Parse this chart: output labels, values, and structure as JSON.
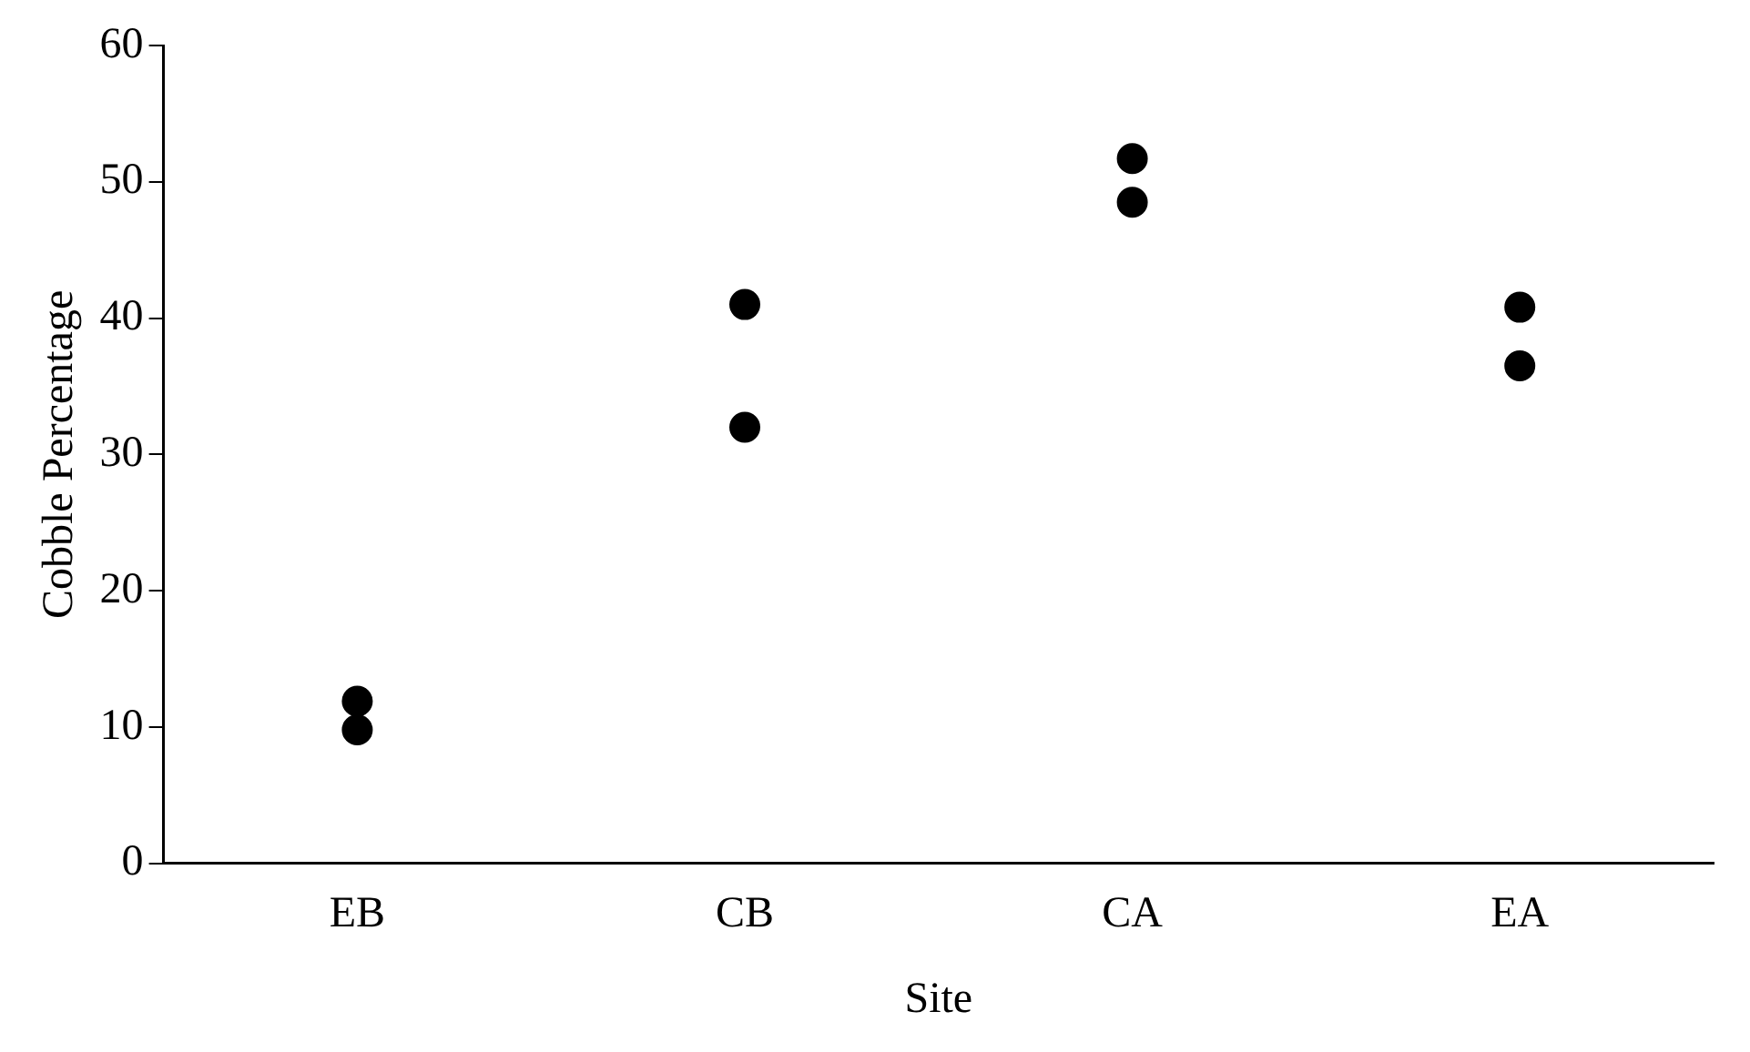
{
  "chart_data": {
    "type": "scatter",
    "xlabel": "Site",
    "ylabel": "Cobble Percentage",
    "categories": [
      "EB",
      "CB",
      "CA",
      "EA"
    ],
    "series": [
      {
        "color": "#000000",
        "x": [
          "EB",
          "EB",
          "CB",
          "CB",
          "CA",
          "CA",
          "EA",
          "EA"
        ],
        "values": [
          11.9,
          9.8,
          41,
          32,
          51.7,
          48.5,
          40.8,
          36.5
        ]
      }
    ],
    "ylim": [
      0,
      60
    ],
    "yticks": [
      0,
      10,
      20,
      30,
      40,
      50,
      60
    ],
    "grid": false,
    "legend": false,
    "marker": "circle"
  }
}
